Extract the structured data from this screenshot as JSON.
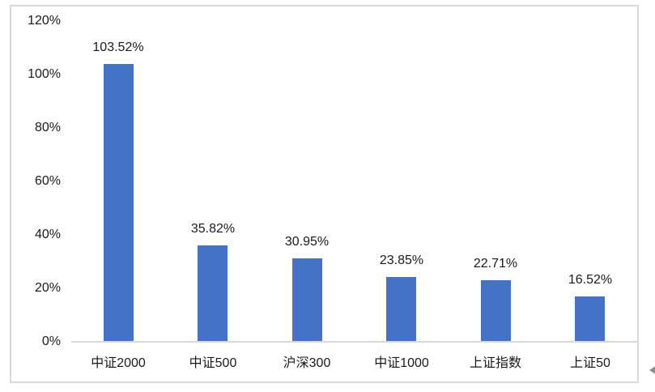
{
  "chart_data": {
    "type": "bar",
    "title": "",
    "xlabel": "",
    "ylabel": "",
    "categories": [
      "中证2000",
      "中证500",
      "沪深300",
      "中证1000",
      "上证指数",
      "上证50"
    ],
    "values": [
      103.52,
      35.82,
      30.95,
      23.85,
      22.71,
      16.52
    ],
    "data_labels": [
      "103.52%",
      "35.82%",
      "30.95%",
      "23.85%",
      "22.71%",
      "16.52%"
    ],
    "y_tick_values": [
      0,
      20,
      40,
      60,
      80,
      100,
      120
    ],
    "y_tick_labels": [
      "0%",
      "20%",
      "40%",
      "60%",
      "80%",
      "100%",
      "120%"
    ],
    "ylim": [
      0,
      120
    ],
    "grid": false,
    "legend_position": "none",
    "bar_color": "#4472C4",
    "axis_line_color": "#D9D9D9",
    "frame_border_color": "#D9D9D9",
    "label_text_color": "#1a1a1a"
  },
  "decorations": {
    "corner_arrow_icon": "left-arrowhead, clipped at right edge",
    "corner_arrow_color": "#8c8c8c"
  }
}
